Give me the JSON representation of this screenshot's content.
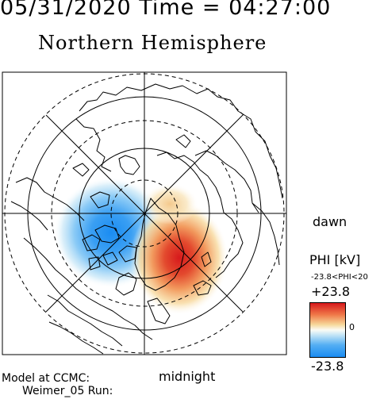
{
  "header": {
    "datetime": "05/31/2020 Time = 04:27:00",
    "title": "Northern Hemisphere"
  },
  "map": {
    "projection": "polar stereographic",
    "labels": {
      "dawn": "dawn",
      "midnight": "midnight"
    },
    "potential_pattern": {
      "negative_cell": "dusk side (left)",
      "positive_cell": "dawn side (right)"
    }
  },
  "colorscale": {
    "title": "PHI [kV]",
    "range_text": "-23.8<PHI<20",
    "max_label": "+23.8",
    "min_label": "-23.8",
    "zero_label": "0",
    "max_value": 23.8,
    "min_value": -23.8,
    "colors": {
      "high": "#d7191c",
      "zero": "#ffffff",
      "low": "#1a8cf2"
    }
  },
  "footer": {
    "model": "Model at CCMC:",
    "run": "Weimer_05 Run:"
  }
}
